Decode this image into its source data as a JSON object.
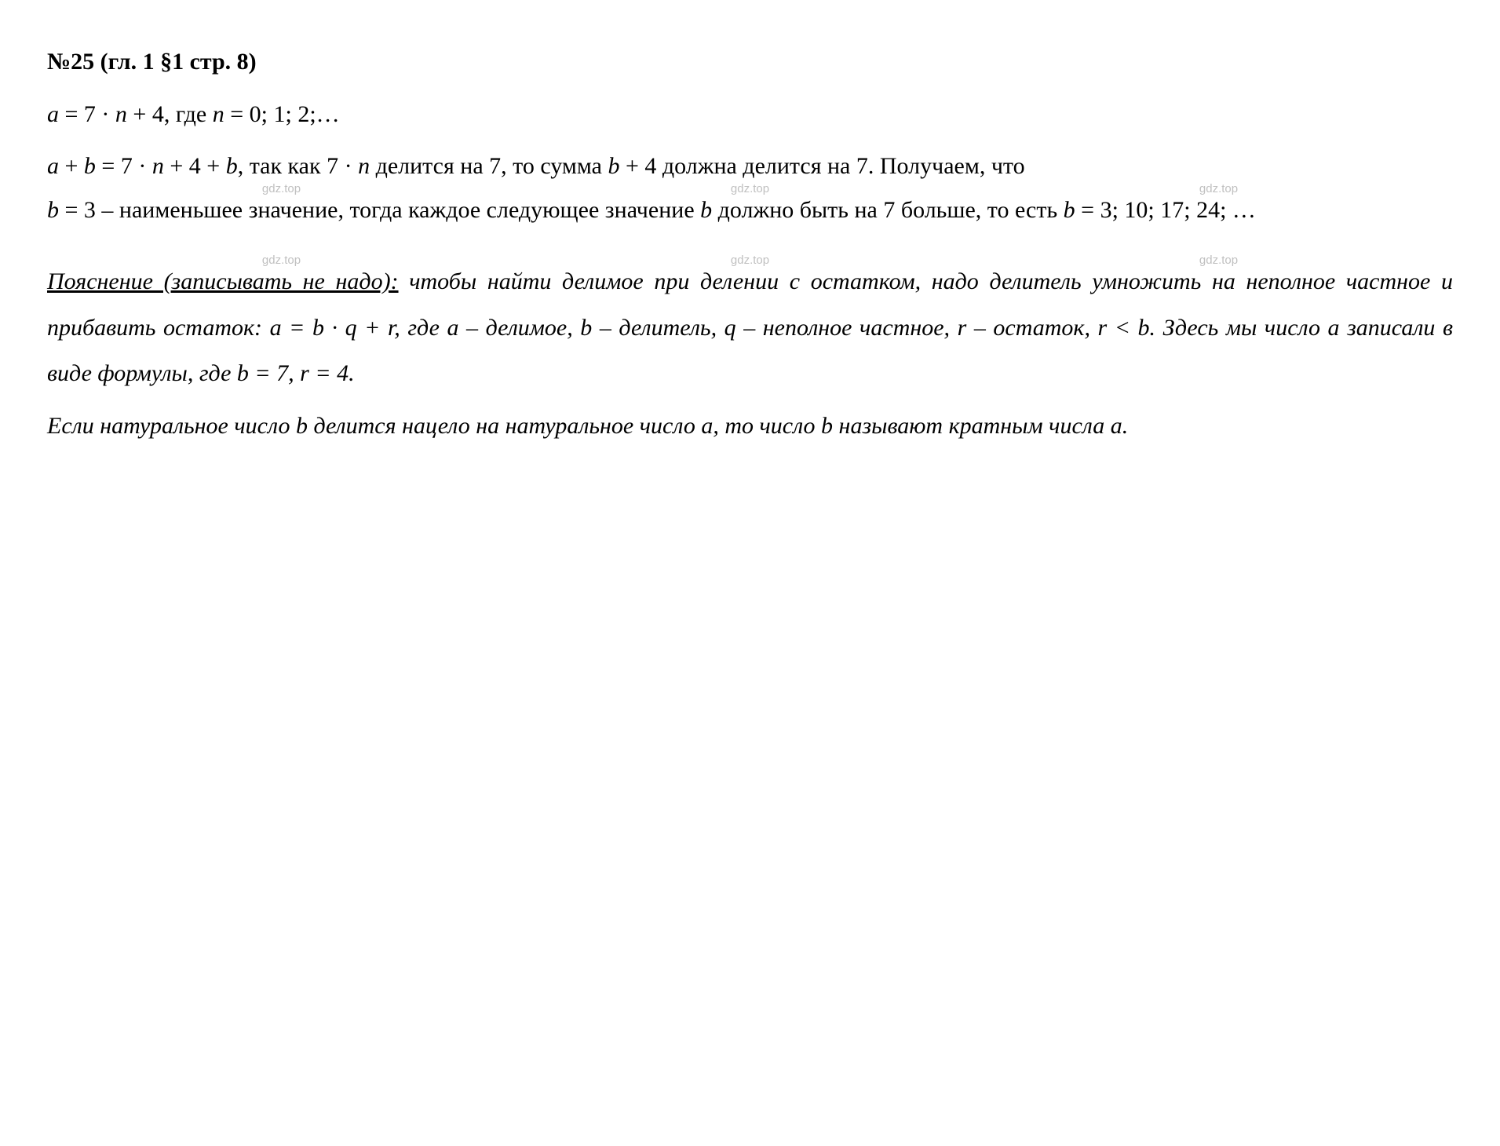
{
  "heading": "№25 (гл. 1 §1 стр. 8)",
  "line1_a": "a",
  "line1_rest": " = 7 · ",
  "line1_n": "n",
  "line1_rest2": " + 4, где ",
  "line1_n2": "n",
  "line1_rest3": " = 0; 1; 2;…",
  "line2_a": "a",
  "line2_plus": " + ",
  "line2_b": "b",
  "line2_eq": " = 7 · ",
  "line2_n": "n",
  "line2_r1": " + 4 + ",
  "line2_b2": "b",
  "line2_r2": ", так как 7 · ",
  "line2_n2": "n",
  "line2_r3": " делится на 7, то сумма ",
  "line2_b3": "b",
  "line2_r4": " + 4 должна делится на 7. Получаем, что ",
  "line2_b4": "b",
  "line2_r5": " = 3 – наименьшее значение, тогда каждое следующее значение ",
  "line2_b5": "b",
  "line2_r6": " должно быть на 7 больше, то есть ",
  "line2_b6": "b",
  "line2_r7": " = 3; 10; 17; 24; …",
  "expl_u1": "Пояснение (записывать не надо):",
  "expl_t1": " чтобы найти делимое при делении с остатком, надо делитель умножить на неполное частное и прибавить остаток: a = b · q + r, где a – делимое, b – делитель, q – неполное частное, r – остаток, r < b. Здесь мы число a записали в виде формулы, где b = 7, r = 4.",
  "expl_p2": "Если натуральное число b делится нацело на натуральное число a, то число b называют кратным числа a.",
  "wm": "gdz.top",
  "colors": {
    "text": "#000000",
    "background": "#ffffff",
    "watermark": "#c0c0c0"
  },
  "font": {
    "family": "Times New Roman",
    "size_pt": 22,
    "wm_size_pt": 11
  }
}
